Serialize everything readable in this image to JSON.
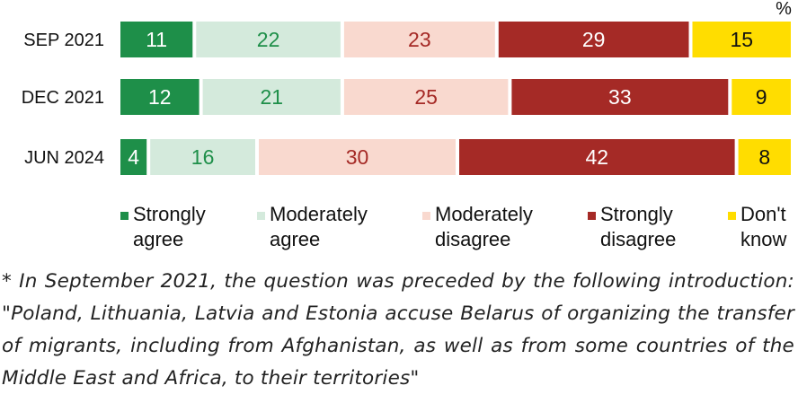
{
  "chart_data": {
    "type": "bar",
    "orientation": "horizontal",
    "stacked": true,
    "unit_label": "%",
    "categories": [
      "SEP 2021",
      "DEC 2021",
      "JUN 2024"
    ],
    "series": [
      {
        "name": "Strongly agree",
        "color": "#1e8f49",
        "label_color": "#ffffff",
        "values": [
          11,
          12,
          4
        ]
      },
      {
        "name": "Moderately agree",
        "color": "#d4eadc",
        "label_color": "#1e8f49",
        "values": [
          22,
          21,
          16
        ]
      },
      {
        "name": "Moderately disagree",
        "color": "#f9d9cf",
        "label_color": "#a52a26",
        "values": [
          23,
          25,
          30
        ]
      },
      {
        "name": "Strongly disagree",
        "color": "#a52a26",
        "label_color": "#ffffff",
        "values": [
          29,
          33,
          42
        ]
      },
      {
        "name": "Don't know",
        "color": "#ffdd00",
        "label_color": "#111111",
        "values": [
          15,
          9,
          8
        ]
      }
    ]
  },
  "legend": [
    {
      "label": "Strongly\nagree",
      "color": "#1e8f49"
    },
    {
      "label": "Moderately\nagree",
      "color": "#d4eadc"
    },
    {
      "label": "Moderately\ndisagree",
      "color": "#f9d9cf"
    },
    {
      "label": "Strongly\ndisagree",
      "color": "#a52a26"
    },
    {
      "label": "Don't\nknow",
      "color": "#ffdd00"
    }
  ],
  "footnote": "* In September 2021, the question was preceded by the following introduction: \"Poland, Lithuania, Latvia and Estonia accuse Belarus of organizing the transfer of migrants, including from Afghanistan, as well as from some countries of the Middle East and Africa, to their territories\""
}
